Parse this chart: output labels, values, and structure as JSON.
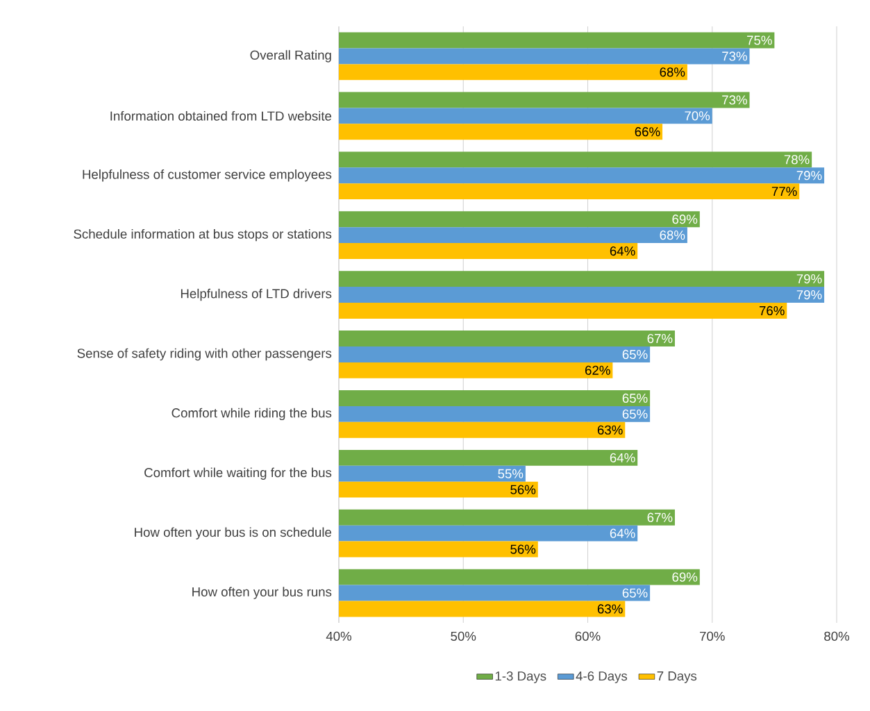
{
  "chart_data": {
    "type": "bar",
    "orientation": "horizontal",
    "categories": [
      "Overall Rating",
      "Information obtained from LTD website",
      "Helpfulness of customer service employees",
      "Schedule information at bus stops or stations",
      "Helpfulness of LTD drivers",
      "Sense of safety riding with other passengers",
      "Comfort while riding the bus",
      "Comfort while waiting for the bus",
      "How often your bus is on schedule",
      "How often your bus runs"
    ],
    "series": [
      {
        "name": "1-3 Days",
        "color": "#70ad47",
        "values": [
          75,
          73,
          78,
          69,
          79,
          67,
          65,
          64,
          67,
          69
        ],
        "value_labels": [
          "75%",
          "73%",
          "78%",
          "69%",
          "79%",
          "67%",
          "65%",
          "64%",
          "67%",
          "69%"
        ]
      },
      {
        "name": "4-6 Days",
        "color": "#5b9bd5",
        "values": [
          73,
          70,
          79,
          68,
          79,
          65,
          65,
          55,
          64,
          65
        ],
        "value_labels": [
          "73%",
          "70%",
          "79%",
          "68%",
          "79%",
          "65%",
          "65%",
          "55%",
          "64%",
          "65%"
        ]
      },
      {
        "name": "7  Days",
        "color": "#ffc000",
        "values": [
          68,
          66,
          77,
          64,
          76,
          62,
          63,
          56,
          56,
          63
        ],
        "value_labels": [
          "68%",
          "66%",
          "77%",
          "64%",
          "76%",
          "62%",
          "63%",
          "56%",
          "56%",
          "63%"
        ]
      }
    ],
    "xlim": [
      40,
      80
    ],
    "xticks": [
      {
        "value": 40,
        "label": "40%"
      },
      {
        "value": 50,
        "label": "50%"
      },
      {
        "value": 60,
        "label": "60%"
      },
      {
        "value": 70,
        "label": "70%"
      },
      {
        "value": 80,
        "label": "80%"
      }
    ],
    "grid": "x",
    "legend": "bottom"
  }
}
